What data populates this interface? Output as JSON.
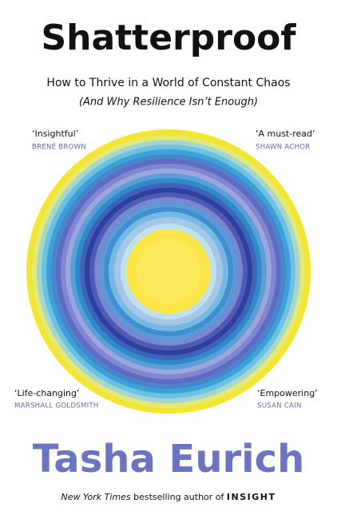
{
  "cover": {
    "title": "Shatterproof",
    "subtitle": "How to Thrive in a World of Constant Chaos",
    "subtitle_note": "(And Why Resilience Isn’t Enough)",
    "quotes": [
      {
        "quote": "‘Insightful’",
        "source": "BRENÉ BROWN"
      },
      {
        "quote": "‘A must-read’",
        "source": "SHAWN ACHOR"
      },
      {
        "quote": "‘Life-changing’",
        "source": "MARSHALL GOLDSMITH"
      },
      {
        "quote": "‘Empowering’",
        "source": "SUSAN CAIN"
      }
    ],
    "author": "Tasha Eurich",
    "tagline": {
      "publication": "New York Times",
      "text": "bestselling author of",
      "book": "INSIGHT"
    }
  }
}
